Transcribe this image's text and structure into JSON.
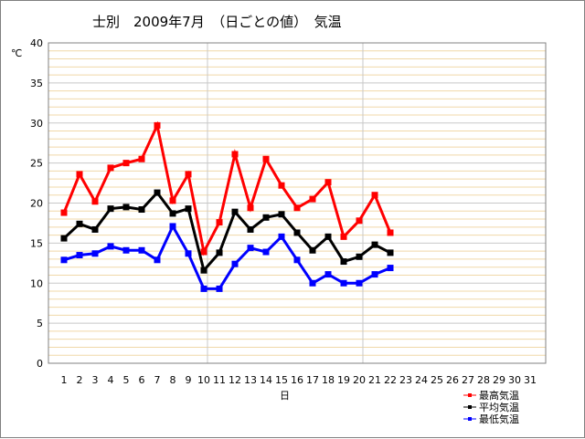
{
  "chart_data": {
    "type": "line",
    "title": "士別　2009年7月　（日ごとの値）　気温",
    "ylabel": "℃",
    "xlabel": "日",
    "ylim": [
      0,
      40
    ],
    "yticks": [
      0,
      5,
      10,
      15,
      20,
      25,
      30,
      35,
      40
    ],
    "categories": [
      "1",
      "2",
      "3",
      "4",
      "5",
      "6",
      "7",
      "8",
      "9",
      "10",
      "11",
      "12",
      "13",
      "14",
      "15",
      "16",
      "17",
      "18",
      "19",
      "20",
      "21",
      "22",
      "23",
      "24",
      "25",
      "26",
      "27",
      "28",
      "29",
      "30",
      "31"
    ],
    "grid": "horizontal minor lines every 1 unit; vertical lines at day 10 and day 20",
    "legend_position": "bottom-right",
    "series": [
      {
        "name": "最高気温",
        "color": "#ff0000",
        "values": [
          18.8,
          23.6,
          20.2,
          24.4,
          25.0,
          25.5,
          29.7,
          20.3,
          23.6,
          13.9,
          17.6,
          26.1,
          19.4,
          25.5,
          22.2,
          19.4,
          20.5,
          22.6,
          15.8,
          17.8,
          21.0,
          16.3,
          null,
          null,
          null,
          null,
          null,
          null,
          null,
          null,
          null
        ]
      },
      {
        "name": "平均気温",
        "color": "#000000",
        "values": [
          15.6,
          17.4,
          16.7,
          19.3,
          19.5,
          19.2,
          21.3,
          18.7,
          19.3,
          11.6,
          13.8,
          18.9,
          16.7,
          18.2,
          18.6,
          16.3,
          14.1,
          15.8,
          12.7,
          13.3,
          14.8,
          13.8,
          null,
          null,
          null,
          null,
          null,
          null,
          null,
          null,
          null
        ]
      },
      {
        "name": "最低気温",
        "color": "#0000ff",
        "values": [
          12.9,
          13.5,
          13.7,
          14.6,
          14.1,
          14.1,
          12.9,
          17.1,
          13.7,
          9.3,
          9.3,
          12.4,
          14.4,
          13.9,
          15.8,
          12.9,
          10.0,
          11.1,
          10.0,
          10.0,
          11.1,
          11.9,
          null,
          null,
          null,
          null,
          null,
          null,
          null,
          null,
          null
        ]
      }
    ]
  }
}
